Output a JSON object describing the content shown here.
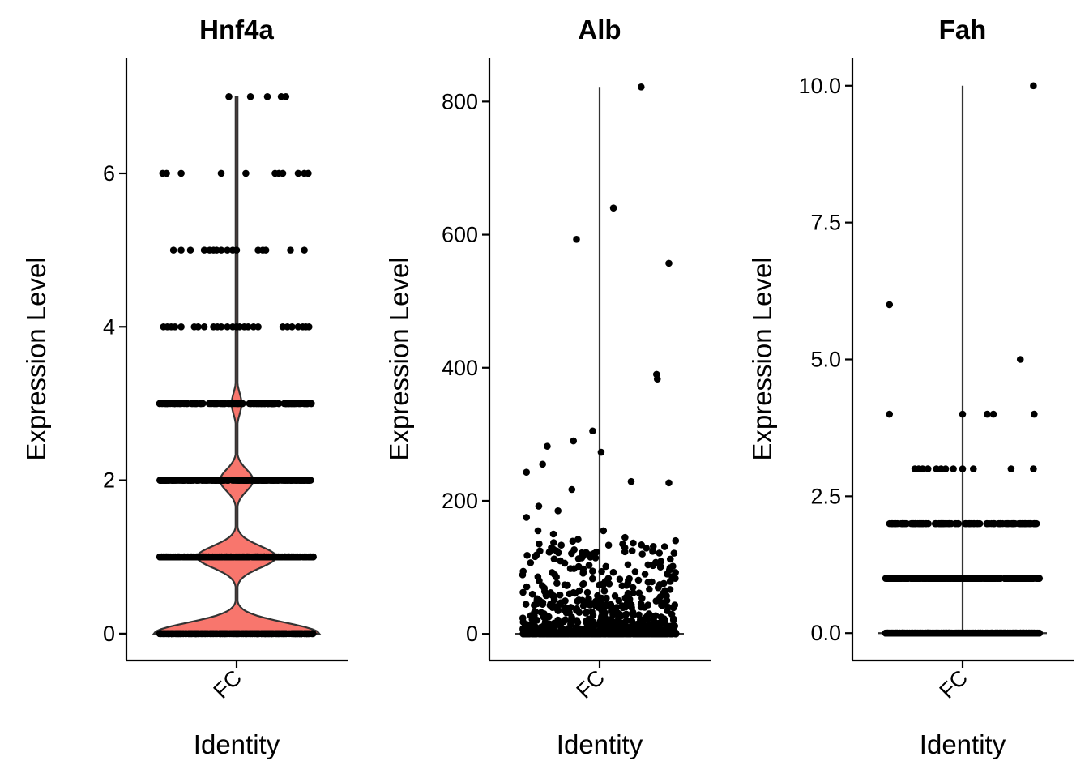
{
  "chart_data": [
    {
      "type": "violin",
      "title": "Hnf4a",
      "xlabel": "Identity",
      "ylabel": "Expression Level",
      "category": "FC",
      "ylim": [
        -0.35,
        7.5
      ],
      "yticks": [
        0,
        2,
        4,
        6
      ],
      "ytick_labels": [
        "0",
        "2",
        "4",
        "6"
      ],
      "fill": "#F8766D",
      "density_levels": [
        0,
        1,
        2,
        3,
        4,
        5,
        6,
        7
      ],
      "density_weights": [
        1.0,
        0.48,
        0.2,
        0.06,
        0.012,
        0.009,
        0.006,
        0.002
      ],
      "points": [
        {
          "y": 0,
          "count": 420,
          "xs": []
        },
        {
          "y": 1,
          "count": 300,
          "xs": []
        },
        {
          "y": 2,
          "count": 220,
          "xs": []
        },
        {
          "y": 3,
          "count": 140,
          "xs": []
        },
        {
          "y": 4,
          "count": 0,
          "xs": [
            -0.95,
            -0.9,
            -0.85,
            -0.8,
            -0.72,
            -0.55,
            -0.5,
            -0.42,
            -0.3,
            -0.25,
            -0.2,
            -0.12,
            -0.05,
            0.0,
            0.04,
            0.1,
            0.15,
            0.22,
            0.28,
            0.6,
            0.66,
            0.72,
            0.8,
            0.86,
            0.9,
            0.94
          ]
        },
        {
          "y": 5,
          "count": 0,
          "xs": [
            -0.82,
            -0.72,
            -0.6,
            -0.42,
            -0.35,
            -0.3,
            -0.26,
            -0.2,
            -0.12,
            -0.05,
            0.0,
            0.28,
            0.34,
            0.38,
            0.7,
            0.88
          ]
        },
        {
          "y": 6,
          "count": 0,
          "xs": [
            -0.96,
            -0.91,
            -0.72,
            -0.2,
            0.12,
            0.5,
            0.55,
            0.6,
            0.8,
            0.88,
            0.93
          ]
        },
        {
          "y": 7,
          "count": 0,
          "xs": [
            -0.1,
            0.18,
            0.4,
            0.58,
            0.64
          ]
        }
      ]
    },
    {
      "type": "violin",
      "title": "Alb",
      "xlabel": "Identity",
      "ylabel": "Expression Level",
      "category": "FC",
      "ylim": [
        -40,
        865
      ],
      "yticks": [
        0,
        200,
        400,
        600,
        800
      ],
      "ytick_labels": [
        "0",
        "200",
        "400",
        "600",
        "800"
      ],
      "fill": "#F8766D",
      "violin_max": 822,
      "points": [
        {
          "x": -0.95,
          "y": 243
        },
        {
          "x": -0.95,
          "y": 175
        },
        {
          "x": -0.68,
          "y": 282
        },
        {
          "x": -0.74,
          "y": 255
        },
        {
          "x": -0.79,
          "y": 192
        },
        {
          "x": -0.8,
          "y": 155
        },
        {
          "x": -0.54,
          "y": 185
        },
        {
          "x": -0.34,
          "y": 290
        },
        {
          "x": -0.36,
          "y": 217
        },
        {
          "x": -0.09,
          "y": 305
        },
        {
          "x": 0.02,
          "y": 273
        },
        {
          "x": -0.3,
          "y": 593
        },
        {
          "x": 0.18,
          "y": 640
        },
        {
          "x": 0.54,
          "y": 822
        },
        {
          "x": 0.9,
          "y": 557
        },
        {
          "x": 0.74,
          "y": 390
        },
        {
          "x": 0.75,
          "y": 383
        },
        {
          "x": 0.41,
          "y": 229
        },
        {
          "x": 0.9,
          "y": 227
        },
        {
          "x": 0.05,
          "y": 155
        },
        {
          "x": -0.6,
          "y": 150
        },
        {
          "x": -0.28,
          "y": 142
        },
        {
          "x": 0.33,
          "y": 145
        },
        {
          "x": 0.3,
          "y": 135
        }
      ],
      "dense_points": {
        "count": 900,
        "range": [
          0,
          140
        ]
      }
    },
    {
      "type": "violin",
      "title": "Fah",
      "xlabel": "Identity",
      "ylabel": "Expression Level",
      "category": "FC",
      "ylim": [
        -0.5,
        10.5
      ],
      "yticks": [
        0.0,
        2.5,
        5.0,
        7.5,
        10.0
      ],
      "ytick_labels": [
        "0.0",
        "2.5",
        "5.0",
        "7.5",
        "10.0"
      ],
      "fill": "#F8766D",
      "violin_max": 10,
      "points": [
        {
          "y": 0,
          "count": 420,
          "xs": []
        },
        {
          "y": 1,
          "count": 260,
          "xs": []
        },
        {
          "y": 2,
          "count": 110,
          "xs": []
        },
        {
          "y": 3,
          "count": 0,
          "xs": [
            -0.62,
            -0.57,
            -0.52,
            -0.45,
            -0.34,
            -0.28,
            -0.22,
            -0.12,
            0.0,
            0.14,
            0.63,
            0.92
          ]
        },
        {
          "y": 4,
          "count": 0,
          "xs": [
            -0.95,
            0.0,
            0.32,
            0.4,
            0.93
          ]
        },
        {
          "y": 5,
          "count": 0,
          "xs": [
            0.75
          ]
        },
        {
          "y": 6,
          "count": 0,
          "xs": [
            -0.95
          ]
        },
        {
          "y": 10,
          "count": 0,
          "xs": [
            0.92
          ]
        }
      ]
    }
  ]
}
